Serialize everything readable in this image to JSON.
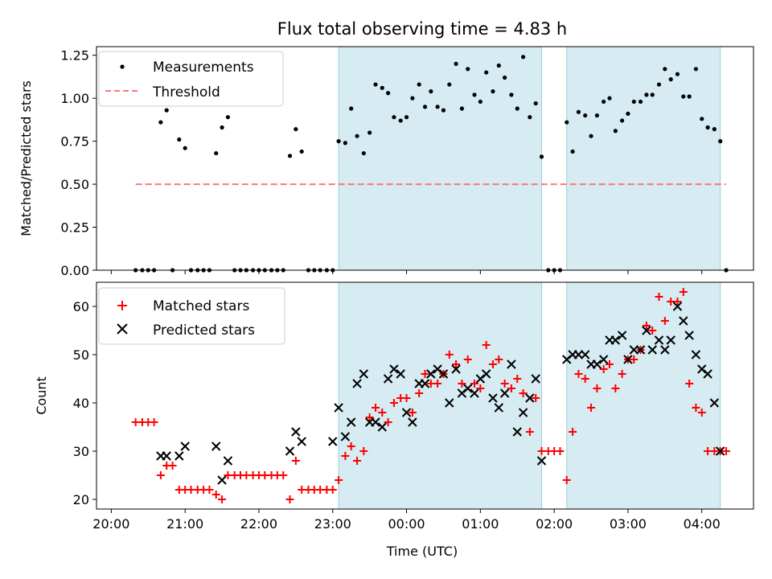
{
  "chart_data": [
    {
      "type": "scatter",
      "title": "Flux total observing time = 4.83 h",
      "xlabel": "",
      "ylabel": "Matched/Predicted stars",
      "ylim": [
        0,
        1.3
      ],
      "yticks": [
        "0.00",
        "0.25",
        "0.50",
        "0.75",
        "1.00",
        "1.25"
      ],
      "threshold": 0.5,
      "legend": {
        "placement": "upper-left",
        "entries": [
          "Measurements",
          "Threshold"
        ]
      },
      "series": [
        {
          "name": "Measurements",
          "color": "#000000",
          "x": [
            20.33,
            20.42,
            20.5,
            20.58,
            20.67,
            20.75,
            20.83,
            20.92,
            21.0,
            21.08,
            21.17,
            21.25,
            21.33,
            21.42,
            21.5,
            21.58,
            21.67,
            21.75,
            21.83,
            21.92,
            22.0,
            22.08,
            22.17,
            22.25,
            22.33,
            22.42,
            22.5,
            22.58,
            22.67,
            22.75,
            22.83,
            22.92,
            23.0,
            23.08,
            23.17,
            23.25,
            23.33,
            23.42,
            23.5,
            23.58,
            23.67,
            23.75,
            23.83,
            23.92,
            24.0,
            24.08,
            24.17,
            24.25,
            24.33,
            24.42,
            24.5,
            24.58,
            24.67,
            24.75,
            24.83,
            24.92,
            25.0,
            25.08,
            25.17,
            25.25,
            25.33,
            25.42,
            25.5,
            25.58,
            25.67,
            25.75,
            25.83,
            25.92,
            26.0,
            26.08,
            26.17,
            26.25,
            26.33,
            26.42,
            26.5,
            26.58,
            26.67,
            26.75,
            26.83,
            26.92,
            27.0,
            27.08,
            27.17,
            27.25,
            27.33,
            27.42,
            27.5,
            27.58,
            27.67,
            27.75,
            27.83,
            27.92,
            28.0,
            28.08,
            28.17,
            28.25,
            28.33
          ],
          "y": [
            0,
            0,
            0,
            0,
            0.86,
            0.93,
            0,
            0.76,
            0.71,
            0,
            0,
            0,
            0,
            0.68,
            0.83,
            0.89,
            0,
            0,
            0,
            0,
            0,
            0,
            0,
            0,
            0,
            0.665,
            0.82,
            0.69,
            0,
            0,
            0,
            0,
            0,
            0.75,
            0.74,
            0.94,
            0.78,
            0.68,
            0.8,
            1.08,
            1.06,
            1.03,
            0.89,
            0.87,
            0.89,
            1.0,
            1.08,
            0.95,
            1.04,
            0.95,
            0.93,
            1.08,
            1.2,
            0.94,
            1.17,
            1.02,
            0.98,
            1.15,
            1.04,
            1.19,
            1.12,
            1.02,
            0.94,
            1.24,
            0.89,
            0.97,
            0.66,
            0,
            0,
            0,
            0.86,
            0.69,
            0.92,
            0.9,
            0.78,
            0.9,
            0.98,
            1.0,
            0.81,
            0.87,
            0.91,
            0.98,
            0.98,
            1.02,
            1.02,
            1.08,
            1.17,
            1.11,
            1.14,
            1.01,
            1.01,
            1.17,
            0.88,
            0.83,
            0.82,
            0.75,
            0
          ]
        }
      ]
    },
    {
      "type": "scatter",
      "title": "",
      "xlabel": "Time (UTC)",
      "ylabel": "Count",
      "ylim": [
        18,
        65
      ],
      "yticks": [
        "20",
        "30",
        "40",
        "50",
        "60"
      ],
      "xticks": [
        "20:00",
        "21:00",
        "22:00",
        "23:00",
        "00:00",
        "01:00",
        "02:00",
        "03:00",
        "04:00"
      ],
      "xlim": [
        19.8,
        28.7
      ],
      "legend": {
        "placement": "upper-left",
        "entries": [
          "Matched stars",
          "Predicted stars"
        ]
      },
      "shaded_intervals": [
        [
          23.08,
          25.83
        ],
        [
          26.17,
          28.25
        ]
      ],
      "series": [
        {
          "name": "Matched stars",
          "marker": "+",
          "color": "#ff0000",
          "x": [
            20.33,
            20.42,
            20.5,
            20.58,
            20.67,
            20.75,
            20.83,
            20.92,
            21.0,
            21.08,
            21.17,
            21.25,
            21.33,
            21.42,
            21.5,
            21.58,
            21.67,
            21.75,
            21.83,
            21.92,
            22.0,
            22.08,
            22.17,
            22.25,
            22.33,
            22.42,
            22.5,
            22.58,
            22.67,
            22.75,
            22.83,
            22.92,
            23.0,
            23.08,
            23.17,
            23.25,
            23.33,
            23.42,
            23.5,
            23.58,
            23.67,
            23.75,
            23.83,
            23.92,
            24.0,
            24.08,
            24.17,
            24.25,
            24.33,
            24.42,
            24.5,
            24.58,
            24.67,
            24.75,
            24.83,
            24.92,
            25.0,
            25.08,
            25.17,
            25.25,
            25.33,
            25.42,
            25.5,
            25.58,
            25.67,
            25.75,
            25.83,
            25.92,
            26.0,
            26.08,
            26.17,
            26.25,
            26.33,
            26.42,
            26.5,
            26.58,
            26.67,
            26.75,
            26.83,
            26.92,
            27.0,
            27.08,
            27.17,
            27.25,
            27.33,
            27.42,
            27.5,
            27.58,
            27.67,
            27.75,
            27.83,
            27.92,
            28.0,
            28.08,
            28.17,
            28.25,
            28.33
          ],
          "y": [
            36,
            36,
            36,
            36,
            25,
            27,
            27,
            22,
            22,
            22,
            22,
            22,
            22,
            21,
            20,
            25,
            25,
            25,
            25,
            25,
            25,
            25,
            25,
            25,
            25,
            20,
            28,
            22,
            22,
            22,
            22,
            22,
            22,
            24,
            29,
            31,
            28,
            30,
            37,
            39,
            38,
            36,
            40,
            41,
            41,
            38,
            42,
            46,
            44,
            44,
            46,
            50,
            48,
            44,
            49,
            44,
            43,
            52,
            48,
            49,
            44,
            43,
            45,
            42,
            34,
            41,
            30,
            30,
            30,
            30,
            24,
            34,
            46,
            45,
            39,
            43,
            47,
            48,
            43,
            46,
            49,
            49,
            51,
            56,
            55,
            62,
            57,
            61,
            61,
            63,
            44,
            39,
            38,
            30,
            30,
            30,
            30
          ]
        },
        {
          "name": "Predicted stars",
          "marker": "x",
          "color": "#000000",
          "x": [
            20.67,
            20.75,
            20.92,
            21.0,
            21.42,
            21.5,
            21.58,
            22.42,
            22.5,
            22.58,
            23.0,
            23.08,
            23.17,
            23.25,
            23.33,
            23.42,
            23.5,
            23.58,
            23.67,
            23.75,
            23.83,
            23.92,
            24.0,
            24.08,
            24.17,
            24.25,
            24.33,
            24.42,
            24.5,
            24.58,
            24.67,
            24.75,
            24.83,
            24.92,
            25.0,
            25.08,
            25.17,
            25.25,
            25.33,
            25.42,
            25.5,
            25.58,
            25.67,
            25.75,
            25.83,
            26.17,
            26.25,
            26.33,
            26.42,
            26.5,
            26.58,
            26.67,
            26.75,
            26.83,
            26.92,
            27.0,
            27.08,
            27.17,
            27.25,
            27.33,
            27.42,
            27.5,
            27.58,
            27.67,
            27.75,
            27.83,
            27.92,
            28.0,
            28.08,
            28.17,
            28.25
          ],
          "y": [
            29,
            29,
            29,
            31,
            31,
            24,
            28,
            30,
            34,
            32,
            32,
            39,
            33,
            36,
            44,
            46,
            36,
            36,
            35,
            45,
            47,
            46,
            38,
            36,
            44,
            44,
            46,
            47,
            46,
            40,
            47,
            42,
            43,
            42,
            45,
            46,
            41,
            39,
            42,
            48,
            34,
            38,
            41,
            45,
            28,
            49,
            50,
            50,
            50,
            48,
            48,
            49,
            53,
            53,
            54,
            49,
            51,
            51,
            55,
            51,
            53,
            51,
            53,
            60,
            57,
            54,
            50,
            47,
            46,
            40,
            30
          ]
        }
      ]
    }
  ]
}
